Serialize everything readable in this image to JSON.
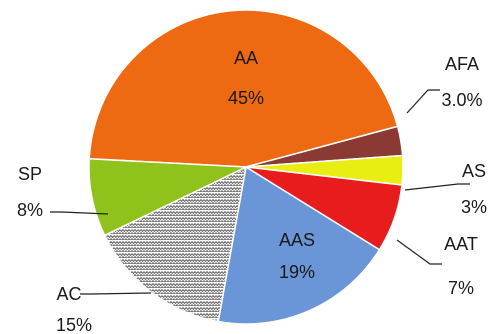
{
  "chart_data": {
    "type": "pie",
    "slices": [
      {
        "name": "AA",
        "value": 45,
        "label": "45%",
        "color": "#ed6a12"
      },
      {
        "name": "AFA",
        "value": 3.0,
        "label": "3.0%",
        "color": "#8b3a33"
      },
      {
        "name": "AS",
        "value": 3,
        "label": "3%",
        "color": "#e8ed12"
      },
      {
        "name": "AAT",
        "value": 7,
        "label": "7%",
        "color": "#e81c1c"
      },
      {
        "name": "AAS",
        "value": 19,
        "label": "19%",
        "color": "#6a95d6"
      },
      {
        "name": "AC",
        "value": 15,
        "label": "15%",
        "color": "zigzag-pattern-gray"
      },
      {
        "name": "SP",
        "value": 8,
        "label": "8%",
        "color": "#8fc21b"
      }
    ],
    "title": "",
    "legend": "none"
  }
}
